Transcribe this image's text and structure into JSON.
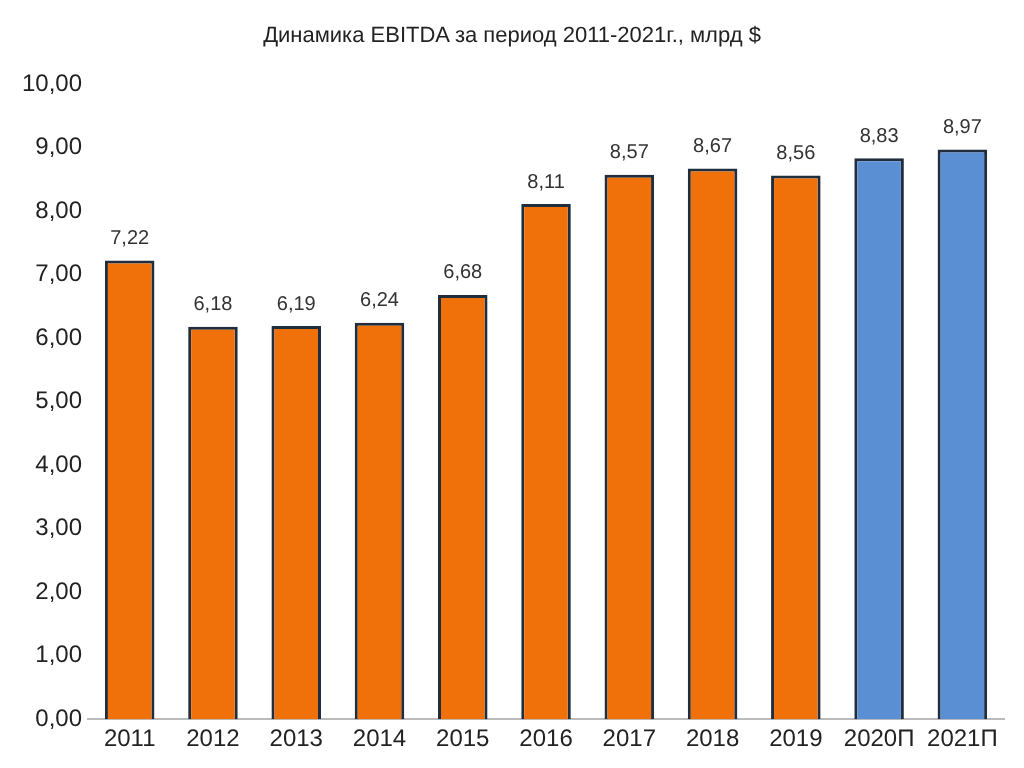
{
  "chart_data": {
    "type": "bar",
    "title": "Динамика EBITDA за период 2011-2021г.,  млрд $",
    "categories": [
      "2011",
      "2012",
      "2013",
      "2014",
      "2015",
      "2016",
      "2017",
      "2018",
      "2019",
      "2020П",
      "2021П"
    ],
    "values": [
      7.22,
      6.18,
      6.19,
      6.24,
      6.68,
      8.11,
      8.57,
      8.67,
      8.56,
      8.83,
      8.97
    ],
    "colors": [
      "#f0700a",
      "#f0700a",
      "#f0700a",
      "#f0700a",
      "#f0700a",
      "#f0700a",
      "#f0700a",
      "#f0700a",
      "#f0700a",
      "#5b8fd4",
      "#5b8fd4"
    ],
    "value_labels": [
      "7,22",
      "6,18",
      "6,19",
      "6,24",
      "6,68",
      "8,11",
      "8,57",
      "8,67",
      "8,56",
      "8,83",
      "8,97"
    ],
    "ylim": [
      0,
      10
    ],
    "yticks": [
      {
        "value": 0,
        "label": "0,00"
      },
      {
        "value": 1,
        "label": "1,00"
      },
      {
        "value": 2,
        "label": "2,00"
      },
      {
        "value": 3,
        "label": "3,00"
      },
      {
        "value": 4,
        "label": "4,00"
      },
      {
        "value": 5,
        "label": "5,00"
      },
      {
        "value": 6,
        "label": "6,00"
      },
      {
        "value": 7,
        "label": "7,00"
      },
      {
        "value": 8,
        "label": "8,00"
      },
      {
        "value": 9,
        "label": "9,00"
      },
      {
        "value": 10,
        "label": "10,00"
      }
    ],
    "grid": false,
    "legend": false
  }
}
